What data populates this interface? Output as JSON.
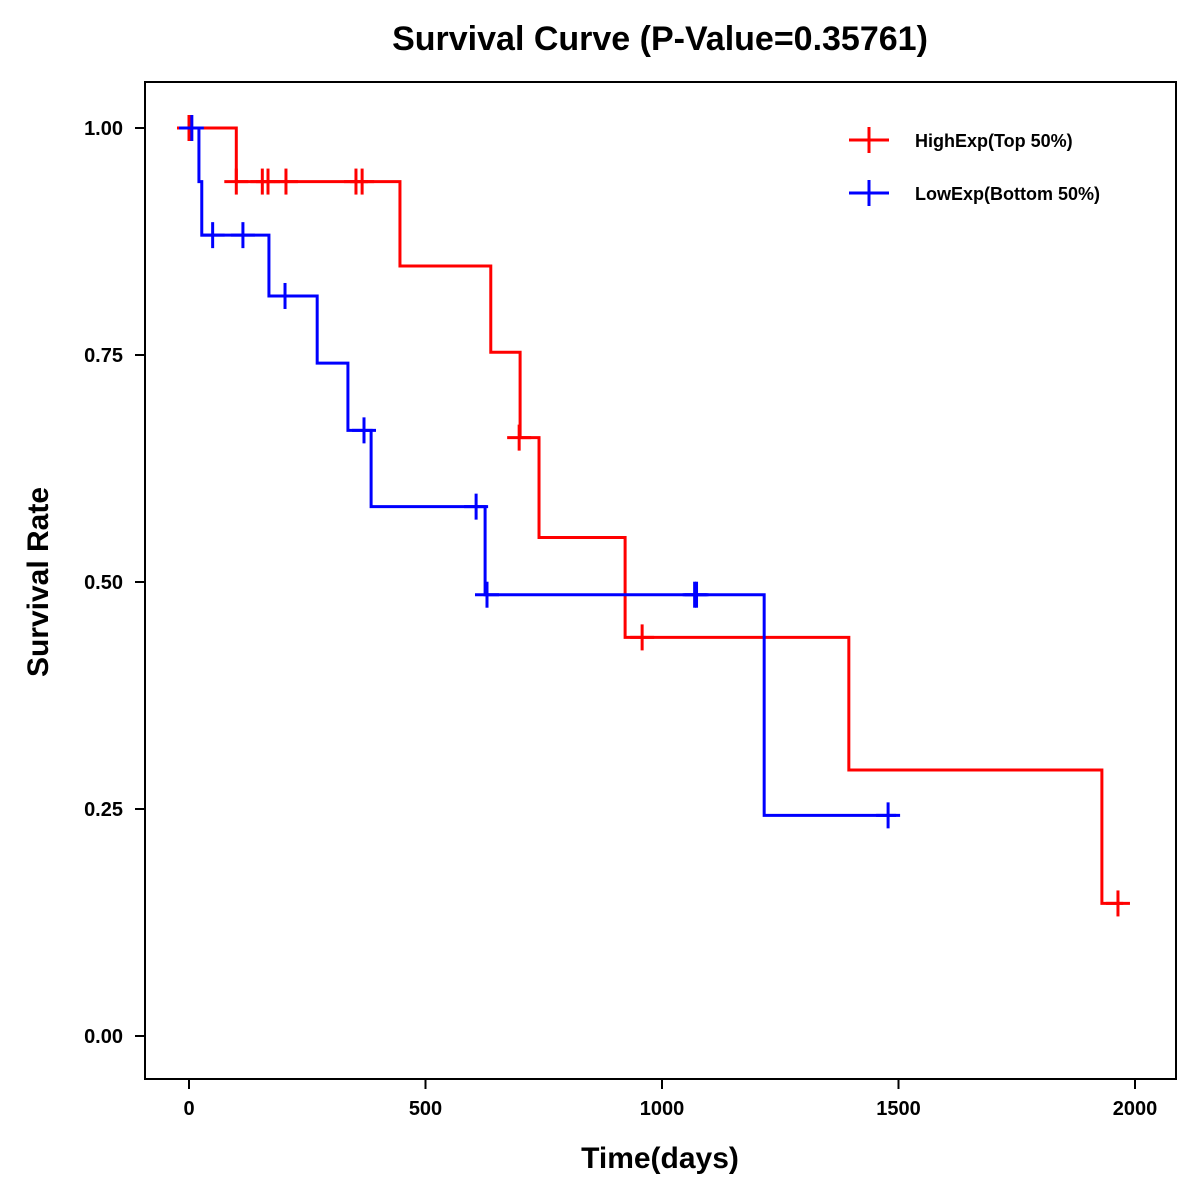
{
  "chart_data": {
    "type": "line",
    "subtype": "kaplan-meier step",
    "title": "Survival Curve (P-Value=0.35761)",
    "xlabel": "Time(days)",
    "ylabel": "Survival Rate",
    "xlim": [
      -90,
      2080
    ],
    "ylim": [
      -0.05,
      1.05
    ],
    "xticks": [
      0,
      500,
      1000,
      1500,
      2000
    ],
    "xtick_labels": [
      "0",
      "500",
      "1000",
      "1500",
      "2000"
    ],
    "yticks": [
      0,
      0.25,
      0.5,
      0.75,
      1.0
    ],
    "ytick_labels": [
      "0.00",
      "0.25",
      "0.50",
      "0.75",
      "1.00"
    ],
    "grid": false,
    "legend_position": "top-right",
    "series": [
      {
        "name": "HighExp(Top 50%)",
        "color": "#ff0000",
        "steps": [
          {
            "t": 0,
            "s": 1.0
          },
          {
            "t": 100,
            "s": 0.941
          },
          {
            "t": 446,
            "s": 0.848
          },
          {
            "t": 638,
            "s": 0.753
          },
          {
            "t": 700,
            "s": 0.659
          },
          {
            "t": 740,
            "s": 0.549
          },
          {
            "t": 922,
            "s": 0.439
          },
          {
            "t": 1395,
            "s": 0.293
          },
          {
            "t": 1930,
            "s": 0.146
          }
        ],
        "end_t": 1975,
        "censored": [
          {
            "t": 0,
            "s": 1.0
          },
          {
            "t": 100,
            "s": 0.941
          },
          {
            "t": 155,
            "s": 0.941
          },
          {
            "t": 167,
            "s": 0.941
          },
          {
            "t": 205,
            "s": 0.941
          },
          {
            "t": 353,
            "s": 0.941
          },
          {
            "t": 366,
            "s": 0.941
          },
          {
            "t": 698,
            "s": 0.659
          },
          {
            "t": 958,
            "s": 0.439
          },
          {
            "t": 1964,
            "s": 0.146
          }
        ]
      },
      {
        "name": "LowExp(Bottom 50%)",
        "color": "#0000ff",
        "steps": [
          {
            "t": 0,
            "s": 1.0
          },
          {
            "t": 21,
            "s": 0.941
          },
          {
            "t": 27,
            "s": 0.882
          },
          {
            "t": 169,
            "s": 0.815
          },
          {
            "t": 271,
            "s": 0.741
          },
          {
            "t": 336,
            "s": 0.667
          },
          {
            "t": 385,
            "s": 0.583
          },
          {
            "t": 626,
            "s": 0.486
          },
          {
            "t": 1216,
            "s": 0.243
          }
        ],
        "end_t": 1495,
        "censored": [
          {
            "t": 6,
            "s": 1.0
          },
          {
            "t": 50,
            "s": 0.882
          },
          {
            "t": 114,
            "s": 0.882
          },
          {
            "t": 203,
            "s": 0.815
          },
          {
            "t": 370,
            "s": 0.667
          },
          {
            "t": 607,
            "s": 0.583
          },
          {
            "t": 630,
            "s": 0.486
          },
          {
            "t": 1069,
            "s": 0.486
          },
          {
            "t": 1073,
            "s": 0.486
          },
          {
            "t": 1478,
            "s": 0.243
          }
        ]
      }
    ]
  }
}
